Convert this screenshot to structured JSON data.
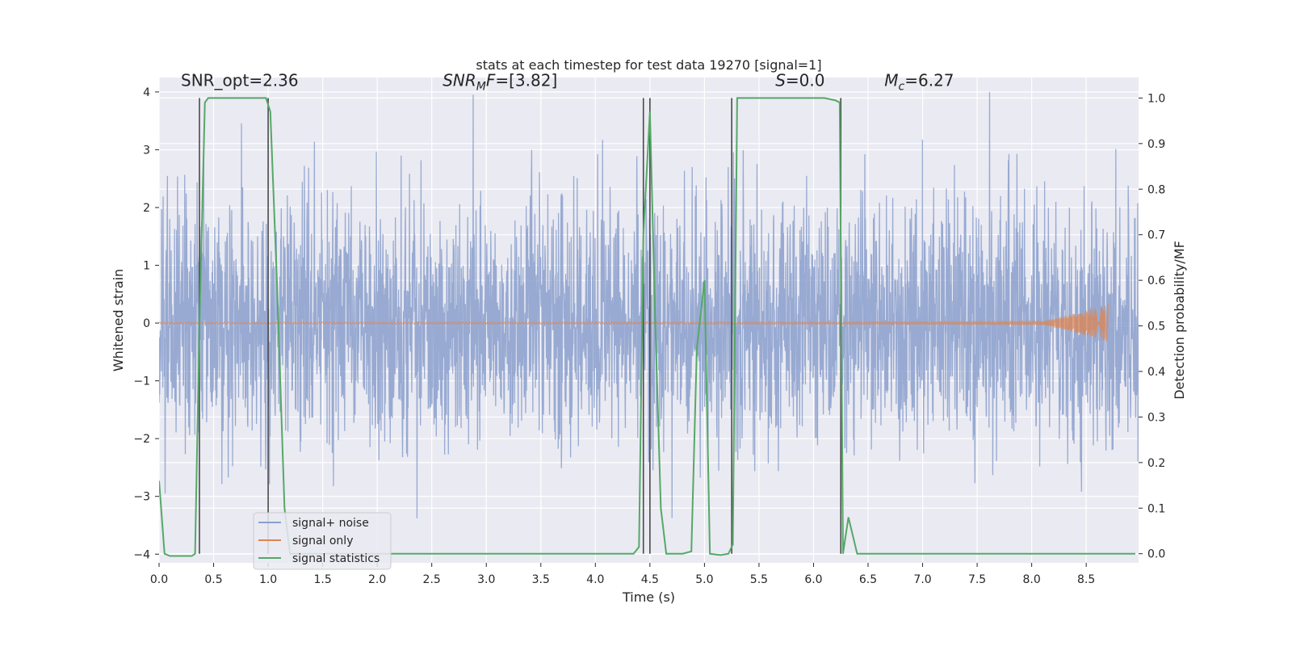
{
  "chart_data": {
    "type": "line",
    "title": "stats at each timestep for test data 19270 [signal=1]",
    "xlabel": "Time (s)",
    "ylabel": "Whitened strain",
    "y2label": "Detection probability/MF",
    "xlim": [
      0.0,
      8.98
    ],
    "ylim": [
      -4.15,
      4.25
    ],
    "y2lim": [
      -0.02,
      1.045
    ],
    "xticks": [
      "0.0",
      "0.5",
      "1.0",
      "1.5",
      "2.0",
      "2.5",
      "3.0",
      "3.5",
      "4.0",
      "4.5",
      "5.0",
      "5.5",
      "6.0",
      "6.5",
      "7.0",
      "7.5",
      "8.0",
      "8.5"
    ],
    "yticks": [
      "4",
      "3",
      "2",
      "1",
      "0",
      "−1",
      "−2",
      "−3",
      "−4"
    ],
    "y2ticks": [
      "1.0",
      "0.9",
      "0.8",
      "0.7",
      "0.6",
      "0.5",
      "0.4",
      "0.3",
      "0.2",
      "0.1",
      "0.0"
    ],
    "grid": true,
    "legend_position": "lower-left",
    "annotations": [
      {
        "text": "SNR_opt=2.36",
        "x": 0.2,
        "y": 4.1
      },
      {
        "text": "SNR",
        "sub": "M",
        "tail": "F=[3.82]",
        "x": 2.6,
        "y": 4.1
      },
      {
        "text": "S=0.0",
        "x": 5.65,
        "y": 4.1
      },
      {
        "text": "M",
        "sub": "c",
        "tail": "=6.27",
        "x": 6.65,
        "y": 4.1
      }
    ],
    "colors": {
      "noise": "#8a9fcd",
      "signal": "#dd8452",
      "stats": "#55a868",
      "vlines": "#4a4a4a",
      "background": "#eaeaf2",
      "grid": "#ffffff"
    },
    "vlines_x": [
      0.37,
      1.0,
      4.44,
      4.5,
      5.25,
      6.25
    ],
    "series": [
      {
        "name": "signal+ noise",
        "note": "noisy whitened strain, amplitude mostly within [-2.6, 2.6], peaks near 4"
      },
      {
        "name": "signal only",
        "chirp_end_x": 8.7,
        "max_amplitude": 0.35
      },
      {
        "name": "signal statistics",
        "axis": "right",
        "x": [
          0.0,
          0.05,
          0.1,
          0.2,
          0.3,
          0.33,
          0.37,
          0.42,
          0.45,
          0.5,
          0.6,
          0.7,
          0.8,
          0.9,
          0.98,
          1.02,
          1.08,
          1.15,
          1.2,
          1.3,
          2.0,
          3.0,
          4.0,
          4.35,
          4.4,
          4.44,
          4.5,
          4.55,
          4.6,
          4.65,
          4.8,
          4.88,
          4.93,
          5.0,
          5.05,
          5.15,
          5.22,
          5.26,
          5.3,
          5.5,
          5.8,
          6.1,
          6.2,
          6.24,
          6.27,
          6.32,
          6.4,
          7.0,
          8.0,
          8.95
        ],
        "values": [
          0.16,
          0.0,
          -0.005,
          -0.005,
          -0.005,
          0.0,
          0.5,
          0.99,
          1.0,
          1.0,
          1.0,
          1.0,
          1.0,
          1.0,
          1.0,
          0.97,
          0.6,
          0.1,
          0.0,
          0.0,
          0.0,
          0.0,
          0.0,
          0.0,
          0.015,
          0.7,
          0.97,
          0.5,
          0.1,
          0.0,
          0.0,
          0.005,
          0.45,
          0.6,
          0.0,
          -0.003,
          0.0,
          0.02,
          1.0,
          1.0,
          1.0,
          1.0,
          0.995,
          0.99,
          0.0,
          0.08,
          0.0,
          0.0,
          0.0,
          0.0
        ]
      }
    ],
    "legend": [
      {
        "label": "signal+ noise",
        "color": "#8a9fcd"
      },
      {
        "label": "signal only",
        "color": "#dd8452"
      },
      {
        "label": "signal statistics",
        "color": "#55a868"
      }
    ]
  }
}
